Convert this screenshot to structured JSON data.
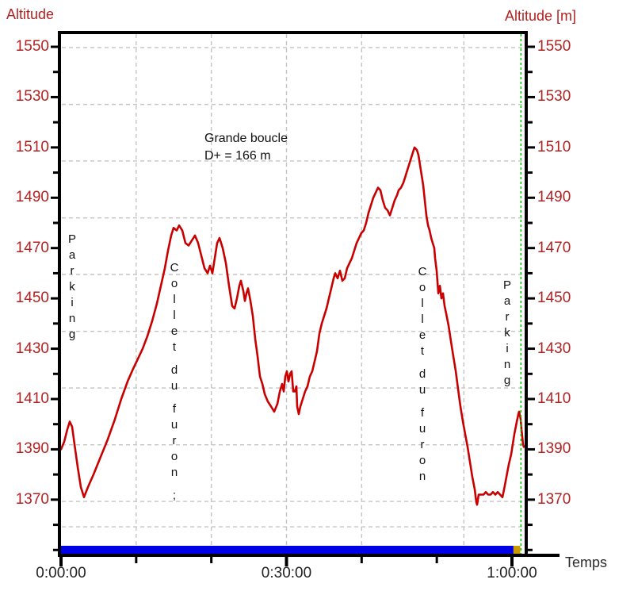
{
  "labels": {
    "altitude_left": "Altitude",
    "altitude_right": "Altitude [m]",
    "temps": "Temps"
  },
  "annotations": {
    "route_name": "Grande boucle",
    "elevation_gain": "D+ = 166 m",
    "parking_left": "Parking",
    "collet_left": "Collet du furon ;",
    "collet_right": "Collet du furon",
    "parking_right": "Parking"
  },
  "colors": {
    "curve": "#c80000",
    "axis_text": "#b22222",
    "grid": "#c4c4c4",
    "cursor": "#00cc00",
    "bar": "#0000e6",
    "bar_end": "#cc9900",
    "axis": "#000000"
  },
  "chart_data": {
    "type": "line",
    "title": "Grande boucle",
    "subtitle": "D+ = 166 m",
    "xlabel": "Temps",
    "ylabel_left": "Altitude",
    "ylabel_right": "Altitude [m]",
    "x_tick_labels": [
      "0:00:00",
      "0:30:00",
      "1:00:00"
    ],
    "x_tick_minutes": [
      0,
      30,
      60
    ],
    "x_minor_tick_minutes": [
      0,
      10,
      20,
      30,
      40,
      50,
      60
    ],
    "y_tick_values": [
      1550,
      1530,
      1510,
      1490,
      1470,
      1450,
      1430,
      1410,
      1390,
      1370
    ],
    "y_minor_tick_values": [
      1350,
      1360,
      1370,
      1380,
      1390,
      1400,
      1410,
      1420,
      1430,
      1440,
      1450,
      1460,
      1470,
      1480,
      1490,
      1500,
      1510,
      1520,
      1530,
      1540,
      1550
    ],
    "xlim_minutes": [
      0,
      61.9
    ],
    "ylim_m": [
      1348,
      1556
    ],
    "grid": true,
    "v_gridlines_minutes": [
      10,
      20,
      30,
      40,
      53.6
    ],
    "h_gridlines_m": [
      1549.7,
      1527.1,
      1504.6,
      1482.0,
      1459.5,
      1436.9,
      1414.4,
      1391.8,
      1369.3,
      1359.2
    ],
    "cursor_minutes": 61.2,
    "bar": {
      "start_min": 0,
      "end_min": 60.2,
      "end2_min": 61.1
    },
    "series": [
      {
        "name": "altitude_profile",
        "points": [
          [
            0,
            1390
          ],
          [
            0.42,
            1393
          ],
          [
            0.84,
            1398
          ],
          [
            1.16,
            1401
          ],
          [
            1.48,
            1399
          ],
          [
            1.79,
            1392
          ],
          [
            2.21,
            1383
          ],
          [
            2.64,
            1375
          ],
          [
            3.06,
            1371
          ],
          [
            3.59,
            1375
          ],
          [
            4.32,
            1380
          ],
          [
            5.27,
            1387
          ],
          [
            6.22,
            1394
          ],
          [
            7.17,
            1402
          ],
          [
            8.01,
            1410
          ],
          [
            8.86,
            1417
          ],
          [
            9.6,
            1422
          ],
          [
            10.23,
            1426
          ],
          [
            10.86,
            1430
          ],
          [
            11.49,
            1435
          ],
          [
            12.13,
            1441
          ],
          [
            12.76,
            1448
          ],
          [
            13.29,
            1455
          ],
          [
            13.81,
            1462
          ],
          [
            14.24,
            1469
          ],
          [
            14.66,
            1475
          ],
          [
            14.97,
            1478
          ],
          [
            15.4,
            1477
          ],
          [
            15.71,
            1479
          ],
          [
            16.13,
            1477
          ],
          [
            16.56,
            1472
          ],
          [
            16.98,
            1471
          ],
          [
            17.4,
            1473
          ],
          [
            17.82,
            1475
          ],
          [
            18.24,
            1472
          ],
          [
            18.66,
            1467
          ],
          [
            19.09,
            1462
          ],
          [
            19.51,
            1460
          ],
          [
            19.82,
            1463
          ],
          [
            20.14,
            1460
          ],
          [
            20.46,
            1466
          ],
          [
            20.77,
            1472
          ],
          [
            21.09,
            1474
          ],
          [
            21.51,
            1470
          ],
          [
            21.93,
            1464
          ],
          [
            22.36,
            1455
          ],
          [
            22.78,
            1447
          ],
          [
            23.09,
            1446
          ],
          [
            23.41,
            1450
          ],
          [
            23.73,
            1455
          ],
          [
            23.94,
            1457
          ],
          [
            24.25,
            1453
          ],
          [
            24.46,
            1449
          ],
          [
            24.68,
            1452
          ],
          [
            24.89,
            1454
          ],
          [
            25.2,
            1449
          ],
          [
            25.52,
            1443
          ],
          [
            25.84,
            1434
          ],
          [
            26.15,
            1427
          ],
          [
            26.47,
            1419
          ],
          [
            26.79,
            1416
          ],
          [
            27.1,
            1412
          ],
          [
            27.52,
            1409
          ],
          [
            27.95,
            1407
          ],
          [
            28.37,
            1405
          ],
          [
            28.79,
            1408
          ],
          [
            29.11,
            1413
          ],
          [
            29.42,
            1416
          ],
          [
            29.63,
            1413
          ],
          [
            29.84,
            1419
          ],
          [
            30.05,
            1421
          ],
          [
            30.26,
            1417
          ],
          [
            30.48,
            1420
          ],
          [
            30.69,
            1421
          ],
          [
            30.9,
            1413
          ],
          [
            31.11,
            1413
          ],
          [
            31.32,
            1415
          ],
          [
            31.42,
            1407
          ],
          [
            31.63,
            1404
          ],
          [
            31.85,
            1407
          ],
          [
            32.16,
            1410
          ],
          [
            32.48,
            1413
          ],
          [
            32.79,
            1415
          ],
          [
            33.11,
            1419
          ],
          [
            33.43,
            1421
          ],
          [
            33.74,
            1425
          ],
          [
            34.06,
            1429
          ],
          [
            34.38,
            1436
          ],
          [
            34.69,
            1440
          ],
          [
            35.01,
            1443
          ],
          [
            35.33,
            1446
          ],
          [
            35.64,
            1450
          ],
          [
            35.96,
            1454
          ],
          [
            36.27,
            1458
          ],
          [
            36.49,
            1460
          ],
          [
            36.8,
            1458
          ],
          [
            37.12,
            1461
          ],
          [
            37.43,
            1457
          ],
          [
            37.75,
            1458
          ],
          [
            38.07,
            1462
          ],
          [
            38.38,
            1464
          ],
          [
            38.7,
            1466
          ],
          [
            39.02,
            1469
          ],
          [
            39.33,
            1472
          ],
          [
            39.65,
            1474
          ],
          [
            39.97,
            1476
          ],
          [
            40.28,
            1477
          ],
          [
            40.6,
            1480
          ],
          [
            40.91,
            1484
          ],
          [
            41.23,
            1487
          ],
          [
            41.55,
            1490
          ],
          [
            41.86,
            1492
          ],
          [
            42.18,
            1494
          ],
          [
            42.5,
            1493
          ],
          [
            42.81,
            1489
          ],
          [
            43.13,
            1486
          ],
          [
            43.44,
            1485
          ],
          [
            43.76,
            1483
          ],
          [
            44.08,
            1486
          ],
          [
            44.39,
            1489
          ],
          [
            44.71,
            1491
          ],
          [
            44.92,
            1493
          ],
          [
            45.24,
            1494
          ],
          [
            45.55,
            1496
          ],
          [
            45.77,
            1498
          ],
          [
            45.98,
            1500
          ],
          [
            46.29,
            1503
          ],
          [
            46.61,
            1506
          ],
          [
            46.82,
            1508
          ],
          [
            47.03,
            1510
          ],
          [
            47.35,
            1509
          ],
          [
            47.56,
            1507
          ],
          [
            47.77,
            1503
          ],
          [
            47.98,
            1499
          ],
          [
            48.19,
            1495
          ],
          [
            48.4,
            1489
          ],
          [
            48.61,
            1483
          ],
          [
            48.83,
            1479
          ],
          [
            49.04,
            1477
          ],
          [
            49.25,
            1474
          ],
          [
            49.46,
            1472
          ],
          [
            49.67,
            1470
          ],
          [
            49.77,
            1466
          ],
          [
            49.98,
            1461
          ],
          [
            50.2,
            1452
          ],
          [
            50.41,
            1455
          ],
          [
            50.62,
            1450
          ],
          [
            50.83,
            1452
          ],
          [
            51.04,
            1447
          ],
          [
            51.25,
            1444
          ],
          [
            51.57,
            1439
          ],
          [
            51.88,
            1433
          ],
          [
            52.2,
            1427
          ],
          [
            52.52,
            1421
          ],
          [
            52.83,
            1414
          ],
          [
            53.15,
            1407
          ],
          [
            53.47,
            1401
          ],
          [
            53.78,
            1396
          ],
          [
            54.1,
            1391
          ],
          [
            54.41,
            1385
          ],
          [
            54.73,
            1379
          ],
          [
            55.05,
            1374
          ],
          [
            55.26,
            1369
          ],
          [
            55.36,
            1368
          ],
          [
            55.57,
            1372
          ],
          [
            55.89,
            1372
          ],
          [
            56.21,
            1372
          ],
          [
            56.52,
            1373
          ],
          [
            56.84,
            1372
          ],
          [
            57.15,
            1372
          ],
          [
            57.47,
            1373
          ],
          [
            57.79,
            1372
          ],
          [
            58.1,
            1373
          ],
          [
            58.42,
            1372
          ],
          [
            58.74,
            1371
          ],
          [
            58.95,
            1374
          ],
          [
            59.26,
            1379
          ],
          [
            59.58,
            1384
          ],
          [
            59.9,
            1388
          ],
          [
            60.11,
            1392
          ],
          [
            60.32,
            1396
          ],
          [
            60.64,
            1401
          ],
          [
            60.85,
            1404
          ],
          [
            60.95,
            1405
          ],
          [
            61.16,
            1402
          ],
          [
            61.27,
            1398
          ],
          [
            61.48,
            1392
          ],
          [
            61.58,
            1391
          ]
        ]
      }
    ]
  }
}
